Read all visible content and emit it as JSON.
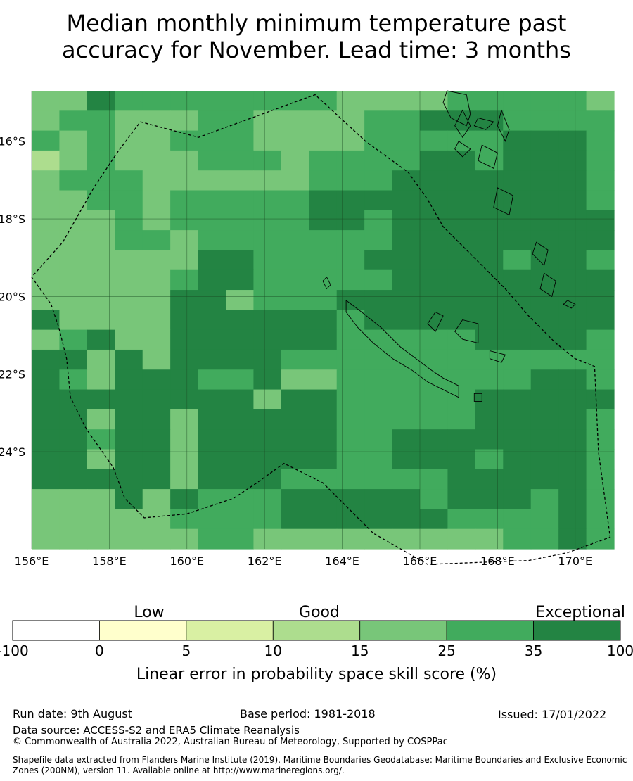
{
  "title_line1": "Median monthly minimum temperature past",
  "title_line2": "accuracy for November. Lead time: 3 months",
  "map": {
    "lon_range": [
      156,
      171
    ],
    "lat_range": [
      -26.5,
      -14.7
    ],
    "lon_ticks": [
      {
        "value": 156,
        "label": "156°E"
      },
      {
        "value": 158,
        "label": "158°E"
      },
      {
        "value": 160,
        "label": "160°E"
      },
      {
        "value": 162,
        "label": "162°E"
      },
      {
        "value": 164,
        "label": "164°E"
      },
      {
        "value": 166,
        "label": "166°E"
      },
      {
        "value": 168,
        "label": "168°E"
      },
      {
        "value": 170,
        "label": "170°E"
      }
    ],
    "lat_ticks": [
      {
        "value": -16,
        "label": "16°S"
      },
      {
        "value": -18,
        "label": "18°S"
      },
      {
        "value": -20,
        "label": "20°S"
      },
      {
        "value": -22,
        "label": "22°S"
      },
      {
        "value": -24,
        "label": "24°S"
      }
    ],
    "grid_lons": [
      156,
      158,
      160,
      162,
      164,
      166,
      168,
      170
    ],
    "grid_lats": [
      -16,
      -18,
      -20,
      -22,
      -24
    ],
    "cell_deg": 0.833,
    "skill_grid": [
      "446555555554444555554",
      "455444554444556665555",
      "545445554444555556665",
      "345444555455556656665",
      "455544444455566666665",
      "445545555566666666665",
      "444545555566566666666",
      "444554555555566666666",
      "444444665555666665665",
      "444445665555566666666",
      "444446645556666666666",
      "644446666665666666666",
      "456446666665555566665",
      "664646666555555555555",
      "654666556445555555665",
      "666666664665555566666",
      "664664666665555566665",
      "665664666665566666665",
      "664664666665566656665",
      "666664666555555666665",
      "444646555666665666565",
      "444445555666666555565",
      "444444554444444445565"
    ],
    "eez_boundary": [
      [
        158.8,
        -15.5
      ],
      [
        160.3,
        -15.9
      ],
      [
        163.3,
        -14.8
      ],
      [
        164.6,
        -16.0
      ],
      [
        165.7,
        -16.8
      ],
      [
        166.2,
        -17.5
      ],
      [
        166.6,
        -18.2
      ],
      [
        167.4,
        -19.0
      ],
      [
        168.2,
        -19.8
      ],
      [
        168.8,
        -20.5
      ],
      [
        169.5,
        -21.2
      ],
      [
        170.0,
        -21.6
      ],
      [
        170.5,
        -21.8
      ],
      [
        170.6,
        -24.0
      ],
      [
        170.9,
        -26.2
      ],
      [
        169.8,
        -26.6
      ],
      [
        168.8,
        -26.8
      ],
      [
        166.2,
        -26.9
      ],
      [
        164.8,
        -26.1
      ],
      [
        163.5,
        -24.8
      ],
      [
        162.5,
        -24.3
      ],
      [
        161.8,
        -24.8
      ],
      [
        161.2,
        -25.2
      ],
      [
        160.0,
        -25.6
      ],
      [
        158.9,
        -25.7
      ],
      [
        158.4,
        -25.2
      ],
      [
        158.1,
        -24.4
      ],
      [
        157.4,
        -23.4
      ],
      [
        157.0,
        -22.6
      ],
      [
        156.9,
        -21.6
      ],
      [
        156.7,
        -20.8
      ],
      [
        156.5,
        -20.2
      ],
      [
        156.0,
        -19.5
      ],
      [
        156.8,
        -18.6
      ],
      [
        157.6,
        -17.2
      ],
      [
        158.2,
        -16.3
      ],
      [
        158.8,
        -15.5
      ]
    ],
    "islands": [
      [
        [
          164.1,
          -20.1
        ],
        [
          164.5,
          -20.4
        ],
        [
          165.0,
          -20.8
        ],
        [
          165.5,
          -21.3
        ],
        [
          165.9,
          -21.6
        ],
        [
          166.3,
          -21.9
        ],
        [
          166.6,
          -22.1
        ],
        [
          167.0,
          -22.3
        ],
        [
          167.0,
          -22.6
        ],
        [
          166.6,
          -22.4
        ],
        [
          166.2,
          -22.2
        ],
        [
          165.8,
          -21.9
        ],
        [
          165.3,
          -21.6
        ],
        [
          164.8,
          -21.2
        ],
        [
          164.4,
          -20.8
        ],
        [
          164.1,
          -20.4
        ]
      ],
      [
        [
          166.7,
          -14.7
        ],
        [
          167.2,
          -14.8
        ],
        [
          167.3,
          -15.3
        ],
        [
          167.2,
          -15.6
        ],
        [
          166.8,
          -15.4
        ],
        [
          166.6,
          -15.0
        ]
      ],
      [
        [
          167.1,
          -15.2
        ],
        [
          167.3,
          -15.6
        ],
        [
          167.1,
          -15.9
        ],
        [
          166.9,
          -15.6
        ]
      ],
      [
        [
          168.1,
          -15.2
        ],
        [
          168.3,
          -15.7
        ],
        [
          168.2,
          -16.0
        ],
        [
          168.0,
          -15.6
        ]
      ],
      [
        [
          167.5,
          -15.4
        ],
        [
          167.9,
          -15.5
        ],
        [
          167.7,
          -15.7
        ],
        [
          167.4,
          -15.6
        ]
      ],
      [
        [
          167.6,
          -16.1
        ],
        [
          168.0,
          -16.3
        ],
        [
          167.9,
          -16.7
        ],
        [
          167.5,
          -16.5
        ]
      ],
      [
        [
          167.0,
          -16.0
        ],
        [
          167.3,
          -16.2
        ],
        [
          167.1,
          -16.4
        ],
        [
          166.9,
          -16.2
        ]
      ],
      [
        [
          168.0,
          -17.2
        ],
        [
          168.4,
          -17.4
        ],
        [
          168.3,
          -17.9
        ],
        [
          167.9,
          -17.7
        ]
      ],
      [
        [
          169.0,
          -18.6
        ],
        [
          169.3,
          -18.8
        ],
        [
          169.2,
          -19.2
        ],
        [
          168.9,
          -18.9
        ]
      ],
      [
        [
          169.2,
          -19.4
        ],
        [
          169.5,
          -19.6
        ],
        [
          169.4,
          -20.0
        ],
        [
          169.1,
          -19.8
        ]
      ],
      [
        [
          166.4,
          -20.4
        ],
        [
          166.6,
          -20.5
        ],
        [
          166.4,
          -20.9
        ],
        [
          166.2,
          -20.7
        ]
      ],
      [
        [
          167.1,
          -20.6
        ],
        [
          167.5,
          -20.7
        ],
        [
          167.5,
          -21.2
        ],
        [
          167.1,
          -21.1
        ],
        [
          166.9,
          -20.9
        ]
      ],
      [
        [
          167.8,
          -21.4
        ],
        [
          168.2,
          -21.5
        ],
        [
          168.1,
          -21.7
        ],
        [
          167.8,
          -21.6
        ]
      ],
      [
        [
          167.4,
          -22.5
        ],
        [
          167.6,
          -22.5
        ],
        [
          167.6,
          -22.7
        ],
        [
          167.4,
          -22.7
        ]
      ],
      [
        [
          169.8,
          -20.1
        ],
        [
          170.0,
          -20.2
        ],
        [
          169.9,
          -20.3
        ],
        [
          169.7,
          -20.2
        ]
      ],
      [
        [
          163.6,
          -19.5
        ],
        [
          163.7,
          -19.7
        ],
        [
          163.6,
          -19.8
        ],
        [
          163.5,
          -19.6
        ]
      ]
    ]
  },
  "colorbar": {
    "categories": {
      "low": "Low",
      "good": "Good",
      "exceptional": "Exceptional"
    },
    "bins": [
      {
        "from": "-100",
        "to": "0",
        "color": "#ffffff"
      },
      {
        "from": "0",
        "to": "5",
        "color": "#ffffcc"
      },
      {
        "from": "5",
        "to": "10",
        "color": "#d9f0a3"
      },
      {
        "from": "10",
        "to": "15",
        "color": "#addd8e"
      },
      {
        "from": "15",
        "to": "25",
        "color": "#78c679"
      },
      {
        "from": "25",
        "to": "35",
        "color": "#41ab5d"
      },
      {
        "from": "35",
        "to": "100",
        "color": "#238443"
      }
    ],
    "tick_labels": [
      "-100",
      "0",
      "5",
      "10",
      "15",
      "25",
      "35",
      "100"
    ],
    "title": "Linear error in probability space skill score (%)"
  },
  "footer": {
    "run_date": "Run date: 9th August",
    "base_period": "Base period: 1981-2018",
    "issued": "Issued: 17/01/2022",
    "data_source": "Data source: ACCESS-S2 and ERA5 Climate Reanalysis",
    "copyright": "© Commonwealth of Australia 2022, Australian Bureau of Meteorology, Supported by COSPPac",
    "shapefile_line1": "Shapefile data extracted from Flanders Marine Institute (2019), Maritime Boundaries Geodatabase: Maritime Boundaries and Exclusive Economic",
    "shapefile_line2": "Zones (200NM), version 11. Available online at http://www.marineregions.org/."
  }
}
